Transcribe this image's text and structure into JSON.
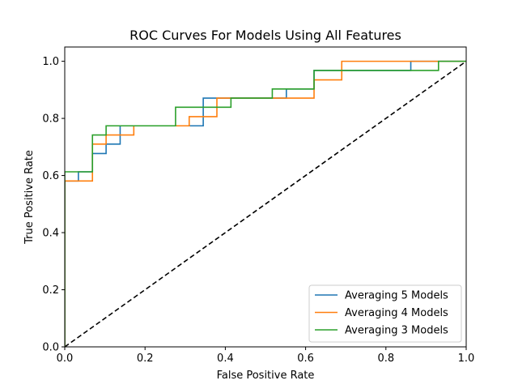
{
  "chart_data": {
    "type": "line",
    "title": "ROC Curves For Models Using All Features",
    "xlabel": "False Positive Rate",
    "ylabel": "True Positive Rate",
    "xlim": [
      0,
      1
    ],
    "ylim": [
      0,
      1.05
    ],
    "xticks": [
      "0.0",
      "0.2",
      "0.4",
      "0.6",
      "0.8",
      "1.0"
    ],
    "yticks": [
      "0.0",
      "0.2",
      "0.4",
      "0.6",
      "0.8",
      "1.0"
    ],
    "grid": false,
    "legend_position": "lower-right",
    "diagonal": {
      "x": [
        0,
        1
      ],
      "y": [
        0,
        1
      ],
      "color": "#000000",
      "style": "dashed"
    },
    "series": [
      {
        "name": "Averaging 5 Models",
        "color": "#1f77b4",
        "x": [
          0,
          0,
          0.034,
          0.034,
          0.069,
          0.069,
          0.103,
          0.103,
          0.138,
          0.138,
          0.345,
          0.345,
          0.414,
          0.414,
          0.552,
          0.552,
          0.621,
          0.621,
          0.862,
          0.862,
          0.931,
          0.931,
          1.0
        ],
        "y": [
          0,
          0.581,
          0.581,
          0.613,
          0.613,
          0.677,
          0.677,
          0.71,
          0.71,
          0.774,
          0.774,
          0.871,
          0.871,
          0.871,
          0.871,
          0.903,
          0.903,
          0.968,
          0.968,
          1.0,
          1.0,
          1.0,
          1.0
        ]
      },
      {
        "name": "Averaging 4 Models",
        "color": "#ff7f0e",
        "x": [
          0,
          0,
          0.069,
          0.069,
          0.103,
          0.103,
          0.172,
          0.172,
          0.31,
          0.31,
          0.379,
          0.379,
          0.621,
          0.621,
          0.69,
          0.69,
          1.0
        ],
        "y": [
          0,
          0.581,
          0.581,
          0.71,
          0.71,
          0.742,
          0.742,
          0.774,
          0.774,
          0.806,
          0.806,
          0.871,
          0.871,
          0.935,
          0.935,
          1.0,
          1.0
        ]
      },
      {
        "name": "Averaging 3 Models",
        "color": "#2ca02c",
        "x": [
          0,
          0,
          0.069,
          0.069,
          0.103,
          0.103,
          0.276,
          0.276,
          0.414,
          0.414,
          0.517,
          0.517,
          0.621,
          0.621,
          0.931,
          0.931,
          1.0
        ],
        "y": [
          0,
          0.613,
          0.613,
          0.742,
          0.742,
          0.774,
          0.774,
          0.839,
          0.839,
          0.871,
          0.871,
          0.903,
          0.903,
          0.968,
          0.968,
          1.0,
          1.0
        ]
      }
    ]
  }
}
